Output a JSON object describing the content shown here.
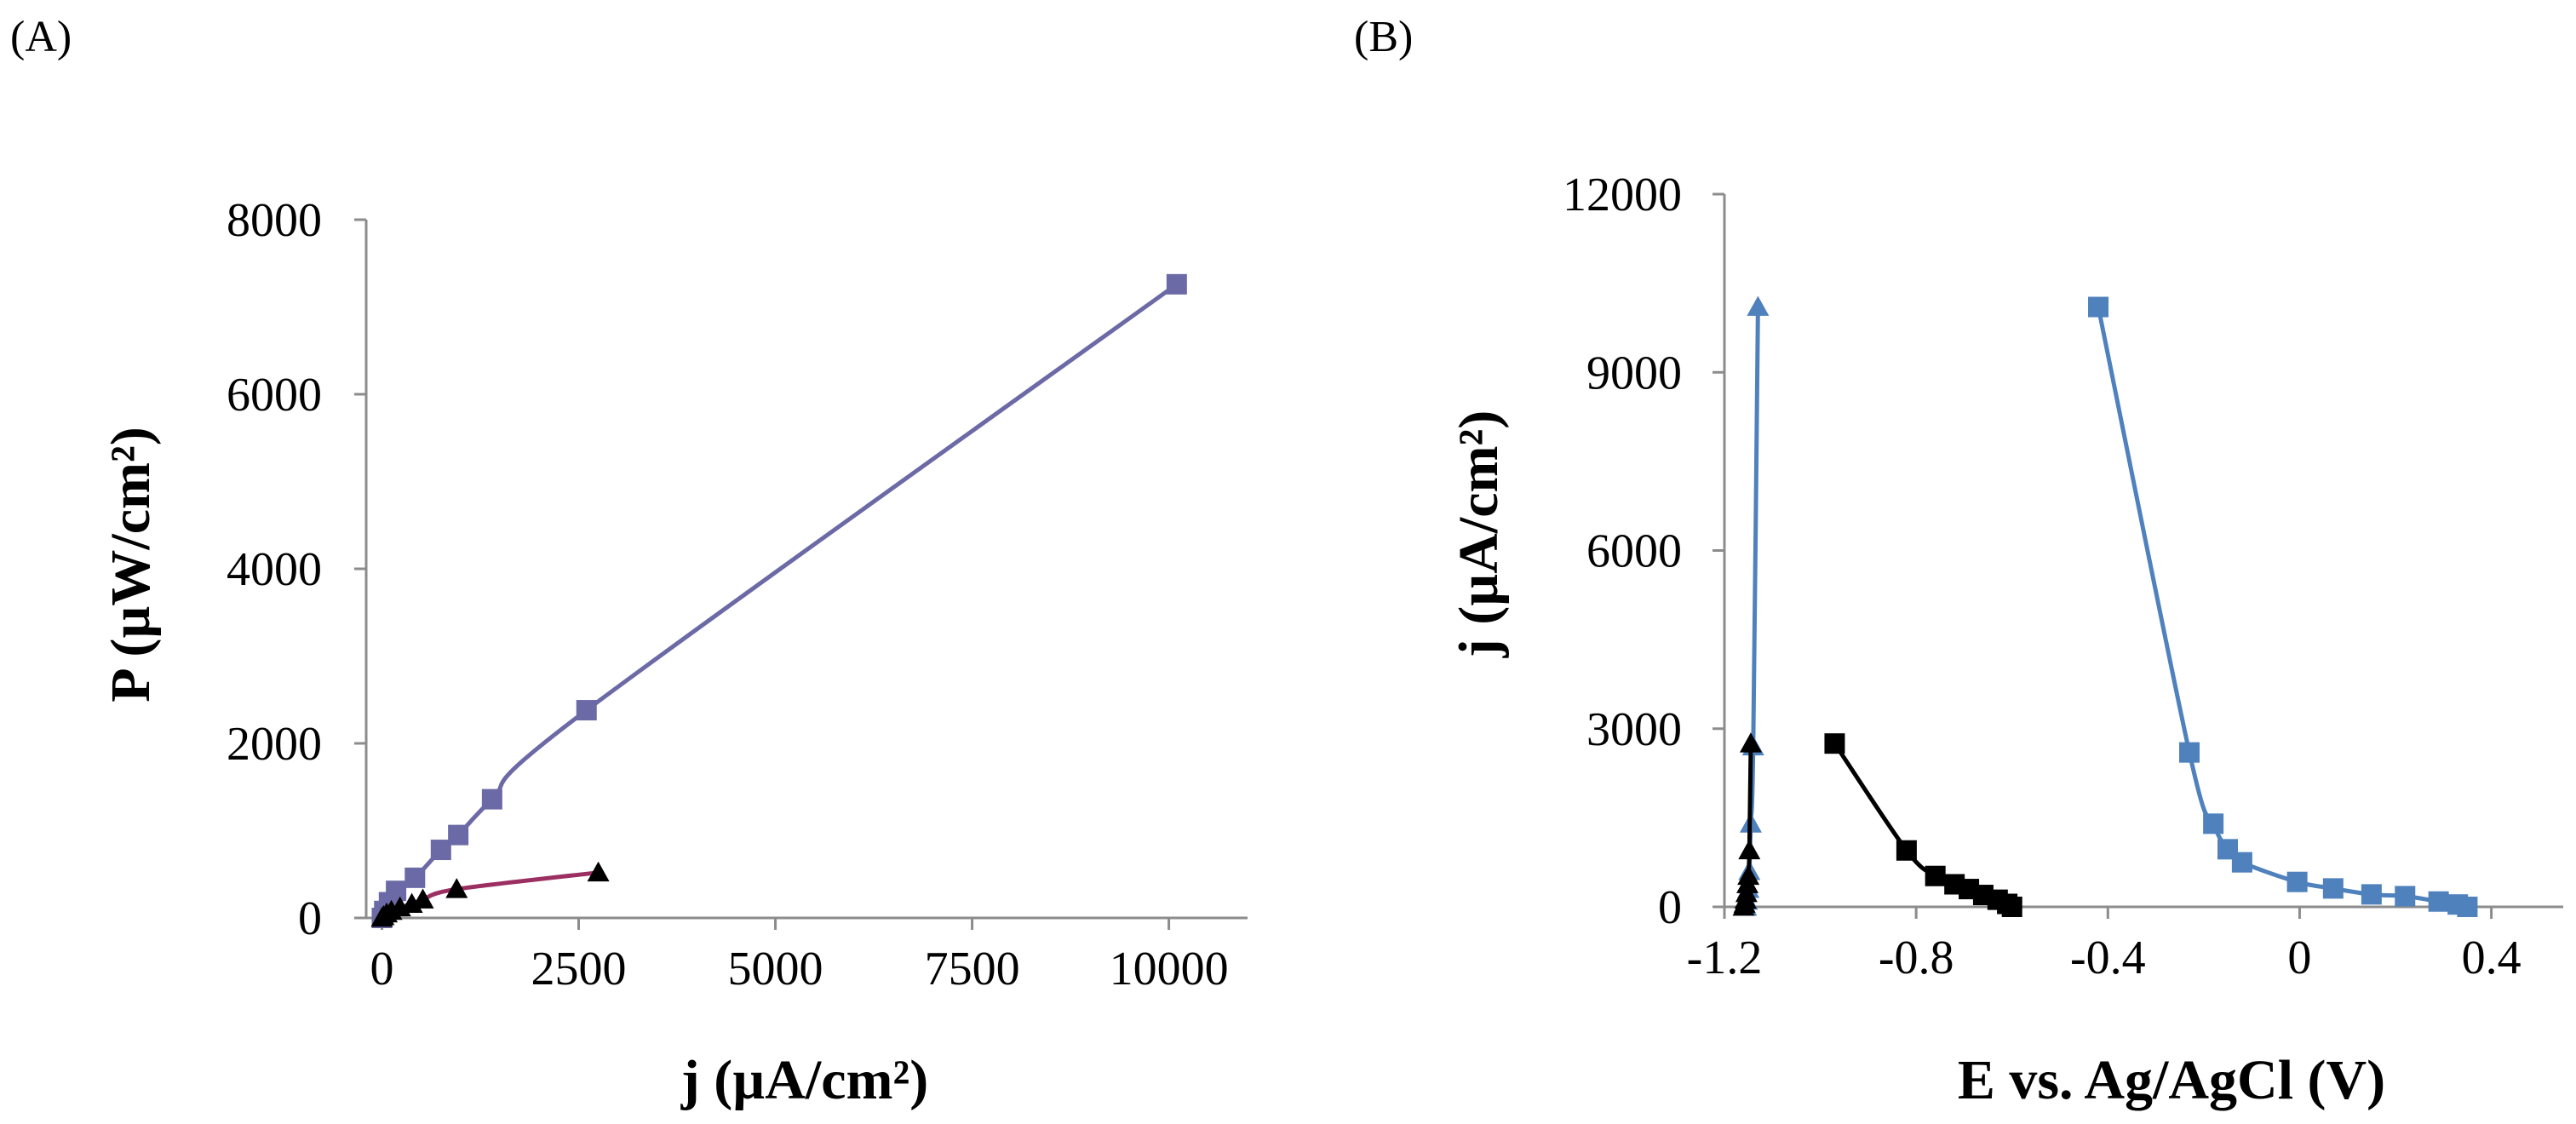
{
  "panels": {
    "a": {
      "label": "(A)"
    },
    "b": {
      "label": "(B)"
    }
  },
  "chart_data": [
    {
      "type": "scatter",
      "panel": "A",
      "xlabel": "j (µA/cm²)",
      "ylabel": "P (µW/cm²)",
      "xlim": [
        -200,
        11000
      ],
      "ylim": [
        0,
        8000
      ],
      "xticks": [
        0,
        2500,
        5000,
        7500,
        10000
      ],
      "yticks": [
        0,
        2000,
        4000,
        6000,
        8000
      ],
      "series": [
        {
          "name": "series-squares",
          "marker": "square",
          "color": "#6b6aa6",
          "line_color": "#6b6aa6",
          "x": [
            0,
            30,
            90,
            180,
            420,
            750,
            970,
            1400,
            2600,
            10100
          ],
          "y": [
            0,
            80,
            180,
            310,
            460,
            780,
            950,
            1360,
            2380,
            7260
          ]
        },
        {
          "name": "series-triangles",
          "marker": "triangle",
          "color": "#000000",
          "line_color": "#9b2f62",
          "x": [
            0,
            20,
            60,
            120,
            230,
            380,
            520,
            950,
            2750
          ],
          "y": [
            0,
            20,
            50,
            80,
            120,
            160,
            210,
            330,
            520
          ]
        }
      ]
    },
    {
      "type": "scatter",
      "panel": "B",
      "xlabel": "E vs. Ag/AgCl (V)",
      "ylabel": "j (µA/cm²)",
      "xlim": [
        -1.2,
        0.55
      ],
      "ylim": [
        0,
        12000
      ],
      "xticks": [
        -1.2,
        -0.8,
        -0.4,
        0,
        0.4
      ],
      "xtick_labels": [
        "-1.2",
        "-0.8",
        "-0.4",
        "0",
        "0.4"
      ],
      "yticks": [
        0,
        3000,
        6000,
        9000,
        12000
      ],
      "series": [
        {
          "name": "series-blue-triangles",
          "marker": "triangle",
          "color": "#4f81bd",
          "line_color": "#4f81bd",
          "x": [
            -1.155,
            -1.153,
            -1.15,
            -1.148,
            -1.145,
            -1.14,
            -1.13
          ],
          "y": [
            0,
            100,
            300,
            600,
            1400,
            2700,
            10100
          ]
        },
        {
          "name": "series-black-triangles",
          "marker": "triangle",
          "color": "#000000",
          "line_color": "#000000",
          "x": [
            -1.16,
            -1.158,
            -1.156,
            -1.154,
            -1.152,
            -1.15,
            -1.148,
            -1.145
          ],
          "y": [
            0,
            50,
            120,
            230,
            380,
            520,
            950,
            2750
          ]
        },
        {
          "name": "series-black-squares",
          "marker": "square",
          "color": "#000000",
          "line_color": "#000000",
          "x": [
            -0.97,
            -0.82,
            -0.76,
            -0.72,
            -0.69,
            -0.66,
            -0.63,
            -0.61,
            -0.6
          ],
          "y": [
            2750,
            950,
            520,
            380,
            300,
            200,
            120,
            50,
            0
          ]
        },
        {
          "name": "series-blue-squares",
          "marker": "square",
          "color": "#4f81bd",
          "line_color": "#4f81bd",
          "x": [
            -0.42,
            -0.23,
            -0.18,
            -0.15,
            -0.12,
            -0.005,
            0.07,
            0.15,
            0.22,
            0.29,
            0.33,
            0.35
          ],
          "y": [
            10100,
            2600,
            1400,
            970,
            750,
            420,
            310,
            210,
            180,
            90,
            40,
            0
          ]
        }
      ]
    }
  ]
}
